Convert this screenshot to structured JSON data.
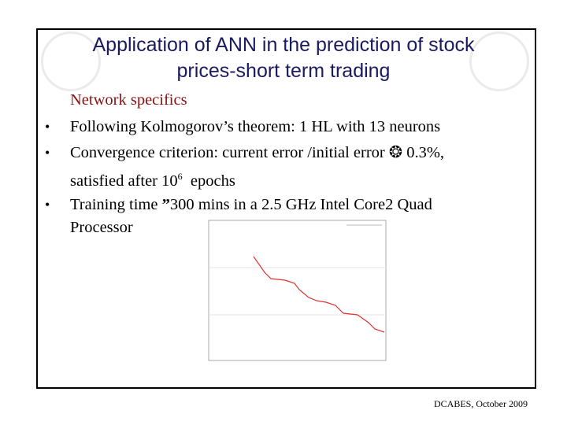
{
  "title": {
    "line1": "Application of ANN in the prediction of stock",
    "line2": "prices-short term trading"
  },
  "subheading": "Network specifics",
  "bullets": [
    {
      "text": "Following Kolmogorov’s theorem: 1 HL with 13 neurons"
    },
    {
      "text": "Convergence criterion: current error /initial error",
      "symbol": "❂",
      "value": "0.3%,",
      "line2": "satisfied after 10",
      "sup": "6",
      "line2_end": "epochs"
    },
    {
      "text": "Training time",
      "symbol": "”",
      "rest": "300 mins in a 2.5 GHz Intel Core2 Quad",
      "line2": "Processor"
    }
  ],
  "footer": "DCABES, October 2009"
}
